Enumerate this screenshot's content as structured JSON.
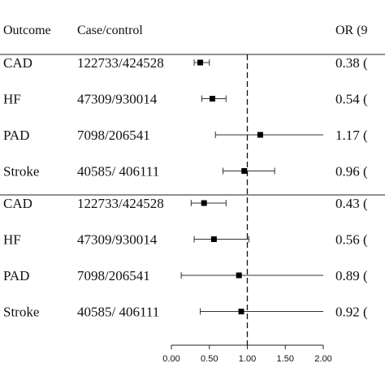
{
  "headers": {
    "outcome": "Outcome",
    "case_control": "Case/control",
    "or": "OR (9"
  },
  "chart_data": {
    "type": "forest",
    "xlim": [
      0,
      2
    ],
    "reference_line": 1.0,
    "x_ticks": [
      "0.00",
      "0.50",
      "1.00",
      "1.50",
      "2.00"
    ],
    "groups": [
      {
        "rows": [
          {
            "outcome": "CAD",
            "case_control": "122733/424528",
            "or": 0.38,
            "ci": [
              0.3,
              0.5
            ],
            "or_text": "0.38 ("
          },
          {
            "outcome": "HF",
            "case_control": "47309/930014",
            "or": 0.54,
            "ci": [
              0.4,
              0.72
            ],
            "or_text": "0.54 ("
          },
          {
            "outcome": "PAD",
            "case_control": "7098/206541",
            "or": 1.17,
            "ci": [
              0.58,
              2.0
            ],
            "or_text": "1.17 ("
          },
          {
            "outcome": "Stroke",
            "case_control": "40585/ 406111",
            "or": 0.96,
            "ci": [
              0.68,
              1.36
            ],
            "or_text": "0.96 ("
          }
        ]
      },
      {
        "rows": [
          {
            "outcome": "CAD",
            "case_control": "122733/424528",
            "or": 0.43,
            "ci": [
              0.26,
              0.72
            ],
            "or_text": "0.43 ("
          },
          {
            "outcome": "HF",
            "case_control": "47309/930014",
            "or": 0.56,
            "ci": [
              0.3,
              1.02
            ],
            "or_text": "0.56 ("
          },
          {
            "outcome": "PAD",
            "case_control": "7098/206541",
            "or": 0.89,
            "ci": [
              0.13,
              2.0
            ],
            "or_text": "0.89 ("
          },
          {
            "outcome": "Stroke",
            "case_control": "40585/ 406111",
            "or": 0.92,
            "ci": [
              0.38,
              2.0
            ],
            "or_text": "0.92 ("
          }
        ]
      }
    ]
  }
}
